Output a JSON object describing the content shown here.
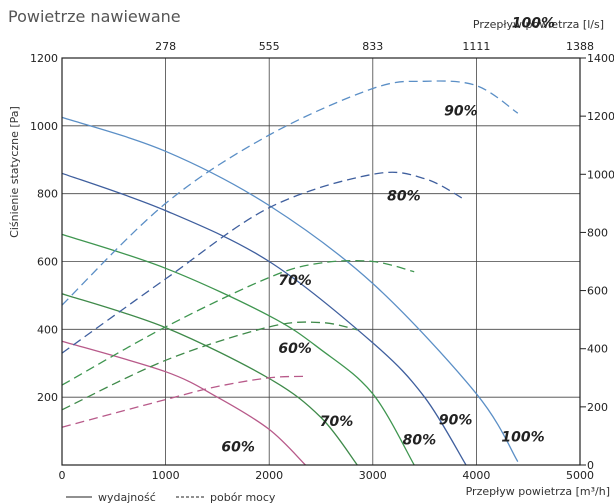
{
  "chart_data": {
    "type": "line",
    "title": "Powietrze nawiewane",
    "xlabel": "Przepływ powietrza [m³/h]",
    "x2label": "Przepływ powietrza [l/s]",
    "ylabel": "Ciśnienie statyczne [Pa]",
    "xlim": [
      0,
      5000
    ],
    "ylim": [
      0,
      1200
    ],
    "y2lim": [
      0,
      1400
    ],
    "x_ticks": [
      0,
      1000,
      2000,
      3000,
      4000,
      5000
    ],
    "x_tick_labels": [
      "0",
      "1000",
      "2000",
      "3000",
      "4000",
      "5000"
    ],
    "x2_tick_labels": [
      "278",
      "555",
      "833",
      "1111",
      "1388"
    ],
    "y_ticks": [
      200,
      400,
      600,
      800,
      1000,
      1200
    ],
    "y_tick_labels": [
      "200",
      "400",
      "600",
      "800",
      "1000",
      "1200"
    ],
    "y2_ticks": [
      0,
      200,
      400,
      600,
      800,
      1000,
      1200,
      1400
    ],
    "y2_tick_labels": [
      "0",
      "200",
      "400",
      "600",
      "800",
      "1000",
      "1200",
      "1400"
    ],
    "grid": true,
    "legend": {
      "position": "bottom-left",
      "entries": [
        {
          "label": "wydajność",
          "style": "solid"
        },
        {
          "label": "pobór mocy",
          "style": "dashed"
        }
      ]
    },
    "series": [
      {
        "name": "100%",
        "kind": "wydajność",
        "axis": "left",
        "color": "#5b8fc6",
        "x": [
          0,
          1000,
          2000,
          3000,
          4000,
          4400
        ],
        "y": [
          1025,
          925,
          765,
          535,
          210,
          10
        ]
      },
      {
        "name": "90%",
        "kind": "wydajność",
        "axis": "left",
        "color": "#3f5f9e",
        "x": [
          0,
          1000,
          2000,
          3000,
          3500,
          3900
        ],
        "y": [
          860,
          750,
          600,
          360,
          200,
          0
        ]
      },
      {
        "name": "80%",
        "kind": "wydajność",
        "axis": "left",
        "color": "#3f9650",
        "x": [
          0,
          1000,
          2000,
          2500,
          3000,
          3400
        ],
        "y": [
          680,
          580,
          440,
          340,
          210,
          0
        ]
      },
      {
        "name": "70%",
        "kind": "wydajność",
        "axis": "left",
        "color": "#3f8a4a",
        "x": [
          0,
          1000,
          2000,
          2500,
          2850
        ],
        "y": [
          505,
          405,
          255,
          140,
          0
        ]
      },
      {
        "name": "60%",
        "kind": "wydajność",
        "axis": "left",
        "color": "#b85a8a",
        "x": [
          0,
          1000,
          1500,
          2000,
          2350
        ],
        "y": [
          365,
          275,
          200,
          105,
          0
        ]
      },
      {
        "name": "100%",
        "kind": "pobór mocy",
        "axis": "right",
        "color": "#5b8fc6",
        "x": [
          0,
          1000,
          2000,
          3000,
          3500,
          4000,
          4400
        ],
        "y": [
          550,
          900,
          1135,
          1295,
          1320,
          1305,
          1210
        ]
      },
      {
        "name": "90%",
        "kind": "pobór mocy",
        "axis": "right",
        "color": "#3f5f9e",
        "x": [
          0,
          1000,
          2000,
          3000,
          3500,
          3900
        ],
        "y": [
          385,
          640,
          885,
          1000,
          985,
          910
        ]
      },
      {
        "name": "80%",
        "kind": "pobór mocy",
        "axis": "right",
        "color": "#3f9650",
        "x": [
          0,
          1000,
          2000,
          2500,
          3000,
          3400
        ],
        "y": [
          275,
          475,
          645,
          695,
          700,
          665
        ]
      },
      {
        "name": "70%",
        "kind": "pobór mocy",
        "axis": "right",
        "color": "#3f8a4a",
        "x": [
          0,
          1000,
          2000,
          2500,
          2850
        ],
        "y": [
          190,
          360,
          475,
          490,
          465
        ]
      },
      {
        "name": "60%",
        "kind": "pobór mocy",
        "axis": "right",
        "color": "#b85a8a",
        "x": [
          0,
          1000,
          1500,
          2000,
          2350
        ],
        "y": [
          130,
          225,
          270,
          300,
          305
        ]
      }
    ],
    "annotations": [
      {
        "text": "100%",
        "x": 4550,
        "y": 1290,
        "axis": "left"
      },
      {
        "text": "90%",
        "x": 3850,
        "y": 1030,
        "axis": "left"
      },
      {
        "text": "80%",
        "x": 3300,
        "y": 780,
        "axis": "left"
      },
      {
        "text": "70%",
        "x": 2250,
        "y": 530,
        "axis": "left"
      },
      {
        "text": "60%",
        "x": 2250,
        "y": 330,
        "axis": "left"
      },
      {
        "text": "70%",
        "x": 2650,
        "y": 115,
        "axis": "left"
      },
      {
        "text": "90%",
        "x": 3800,
        "y": 120,
        "axis": "left"
      },
      {
        "text": "80%",
        "x": 3450,
        "y": 60,
        "axis": "left"
      },
      {
        "text": "100%",
        "x": 4450,
        "y": 70,
        "axis": "left"
      },
      {
        "text": "60%",
        "x": 1700,
        "y": 40,
        "axis": "left"
      }
    ]
  }
}
